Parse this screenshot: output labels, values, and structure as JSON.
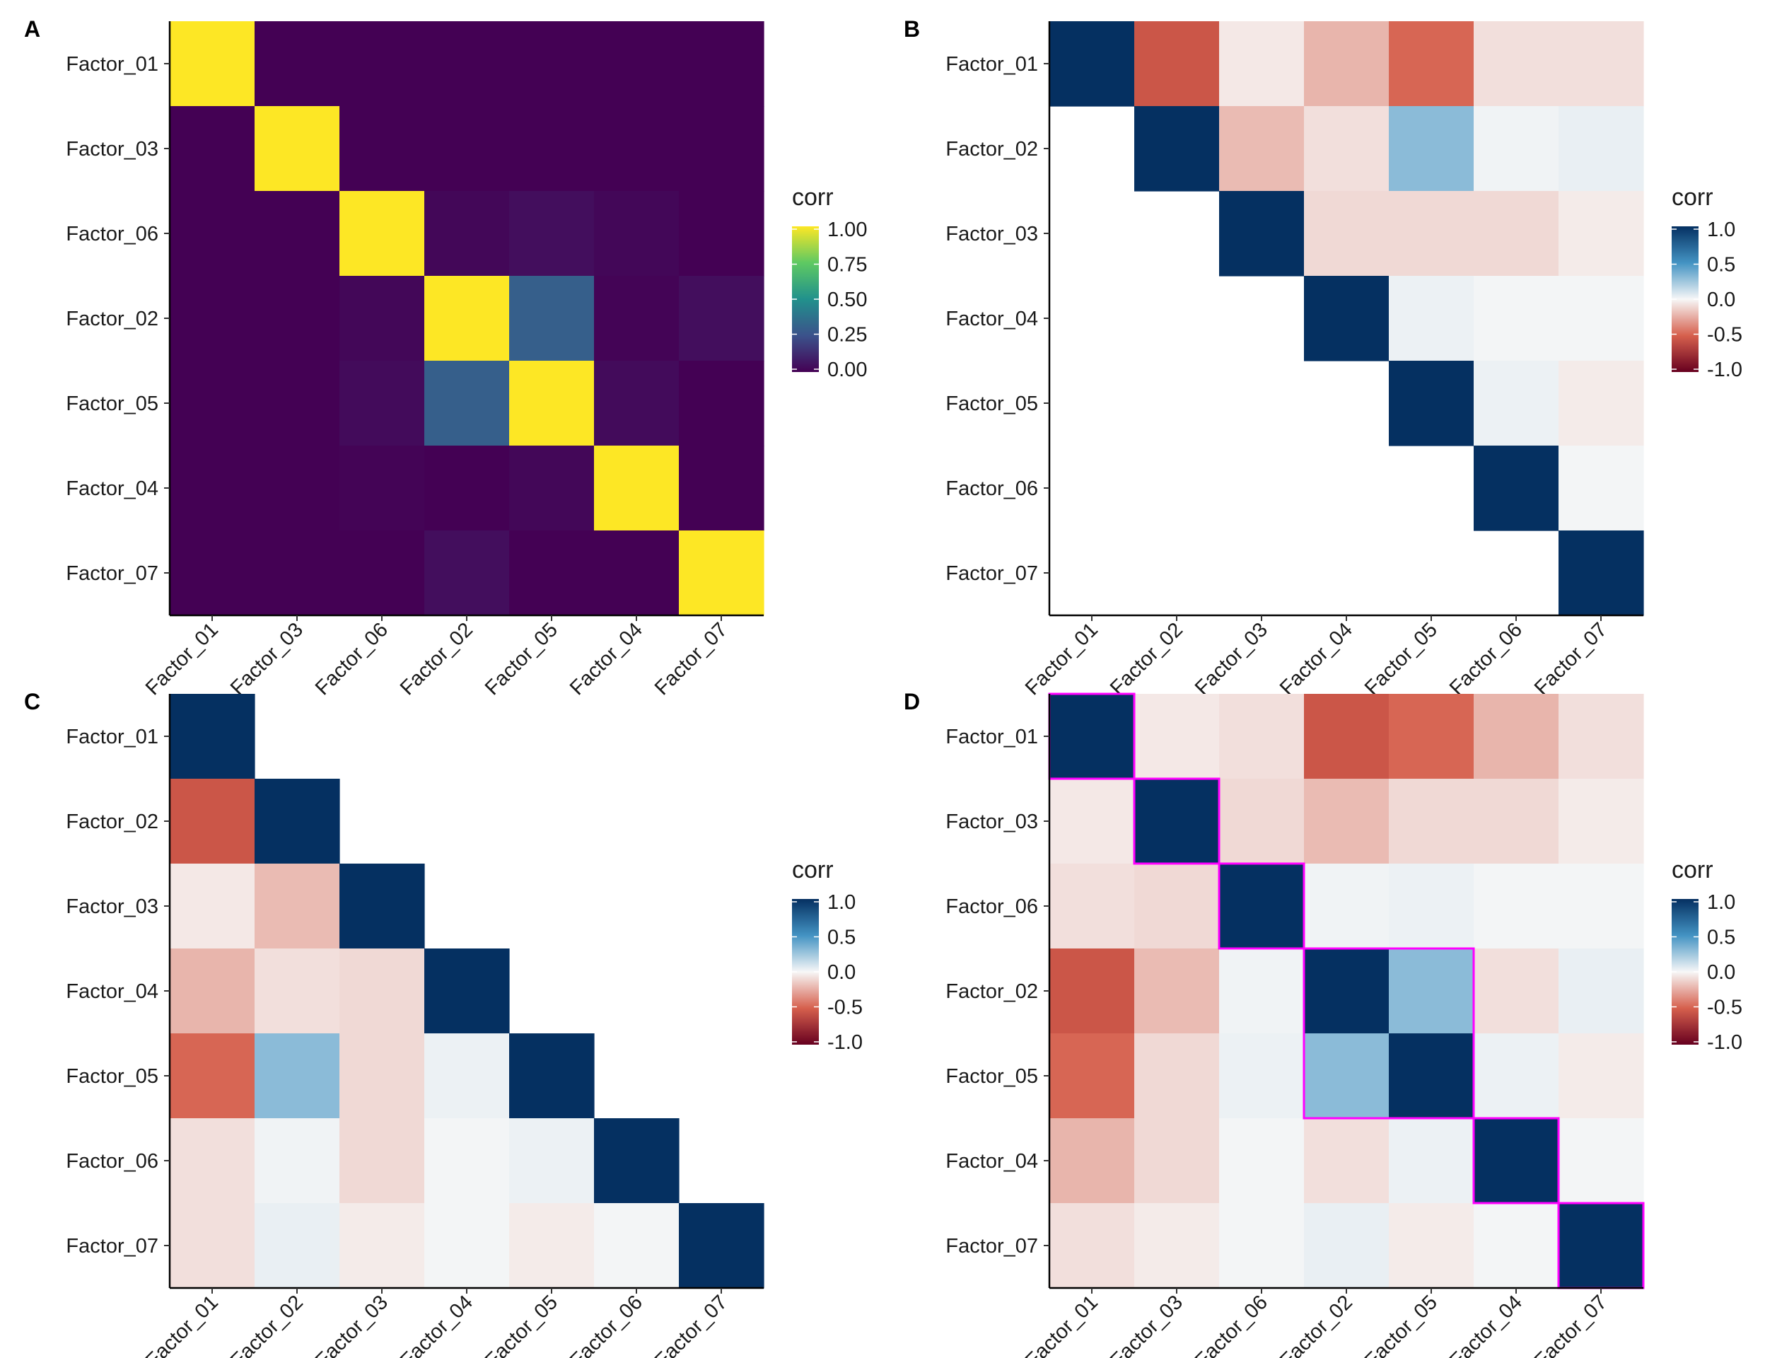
{
  "colors": {
    "viridis": [
      "#440154",
      "#3b528b",
      "#21918c",
      "#5ec962",
      "#fde725"
    ],
    "rdbu": [
      "#67001f",
      "#d6604d",
      "#f7f7f7",
      "#4393c3",
      "#053061"
    ],
    "highlight": "#ff00ff",
    "axis": "#000000"
  },
  "chart_data": [
    {
      "panel": "A",
      "type": "heatmap",
      "palette": "viridis",
      "order": [
        "Factor_01",
        "Factor_03",
        "Factor_06",
        "Factor_02",
        "Factor_05",
        "Factor_04",
        "Factor_07"
      ],
      "matrix": [
        [
          1.0,
          0.0,
          0.0,
          0.0,
          0.0,
          0.0,
          0.0
        ],
        [
          0.0,
          1.0,
          0.0,
          0.0,
          0.0,
          0.0,
          0.0
        ],
        [
          0.0,
          0.0,
          1.0,
          0.02,
          0.04,
          0.02,
          0.0
        ],
        [
          0.0,
          0.0,
          0.02,
          1.0,
          0.3,
          0.01,
          0.04
        ],
        [
          0.0,
          0.0,
          0.03,
          0.3,
          1.0,
          0.03,
          0.0
        ],
        [
          0.0,
          0.0,
          0.01,
          0.0,
          0.02,
          1.0,
          0.0
        ],
        [
          0.0,
          0.0,
          0.0,
          0.04,
          0.0,
          0.0,
          1.0
        ]
      ],
      "triangle": "full",
      "legend": {
        "title": "corr",
        "ticks": [
          "1.00",
          "0.75",
          "0.50",
          "0.25",
          "0.00"
        ],
        "range": [
          0,
          1
        ]
      },
      "highlight_groups": []
    },
    {
      "panel": "B",
      "type": "heatmap",
      "palette": "rdbu",
      "order": [
        "Factor_01",
        "Factor_02",
        "Factor_03",
        "Factor_04",
        "Factor_05",
        "Factor_06",
        "Factor_07"
      ],
      "matrix": [
        [
          1.0,
          -0.55,
          -0.05,
          -0.22,
          -0.48,
          -0.08,
          -0.08
        ],
        [
          -0.55,
          1.0,
          -0.2,
          -0.08,
          0.3,
          0.02,
          0.04
        ],
        [
          -0.05,
          -0.2,
          1.0,
          -0.1,
          -0.1,
          -0.1,
          -0.04
        ],
        [
          -0.22,
          -0.08,
          -0.1,
          1.0,
          0.03,
          0.01,
          0.01
        ],
        [
          -0.48,
          0.3,
          -0.1,
          0.03,
          1.0,
          0.03,
          -0.04
        ],
        [
          -0.08,
          0.02,
          -0.1,
          0.01,
          0.03,
          1.0,
          0.01
        ],
        [
          -0.08,
          0.04,
          -0.04,
          0.01,
          -0.04,
          0.01,
          1.0
        ]
      ],
      "triangle": "upper",
      "legend": {
        "title": "corr",
        "ticks": [
          "1.0",
          "0.5",
          "0.0",
          "-0.5",
          "-1.0"
        ],
        "range": [
          -1,
          1
        ]
      },
      "highlight_groups": []
    },
    {
      "panel": "C",
      "type": "heatmap",
      "palette": "rdbu",
      "order": [
        "Factor_01",
        "Factor_02",
        "Factor_03",
        "Factor_04",
        "Factor_05",
        "Factor_06",
        "Factor_07"
      ],
      "matrix": [
        [
          1.0,
          -0.55,
          -0.05,
          -0.22,
          -0.48,
          -0.08,
          -0.08
        ],
        [
          -0.55,
          1.0,
          -0.2,
          -0.08,
          0.3,
          0.02,
          0.04
        ],
        [
          -0.05,
          -0.2,
          1.0,
          -0.1,
          -0.1,
          -0.1,
          -0.04
        ],
        [
          -0.22,
          -0.08,
          -0.1,
          1.0,
          0.03,
          0.01,
          0.01
        ],
        [
          -0.48,
          0.3,
          -0.1,
          0.03,
          1.0,
          0.03,
          -0.04
        ],
        [
          -0.08,
          0.02,
          -0.1,
          0.01,
          0.03,
          1.0,
          0.01
        ],
        [
          -0.08,
          0.04,
          -0.04,
          0.01,
          -0.04,
          0.01,
          1.0
        ]
      ],
      "triangle": "lower",
      "legend": {
        "title": "corr",
        "ticks": [
          "1.0",
          "0.5",
          "0.0",
          "-0.5",
          "-1.0"
        ],
        "range": [
          -1,
          1
        ]
      },
      "highlight_groups": []
    },
    {
      "panel": "D",
      "type": "heatmap",
      "palette": "rdbu",
      "order": [
        "Factor_01",
        "Factor_03",
        "Factor_06",
        "Factor_02",
        "Factor_05",
        "Factor_04",
        "Factor_07"
      ],
      "matrix": [
        [
          1.0,
          -0.05,
          -0.08,
          -0.55,
          -0.48,
          -0.22,
          -0.08
        ],
        [
          -0.05,
          1.0,
          -0.1,
          -0.2,
          -0.1,
          -0.1,
          -0.04
        ],
        [
          -0.08,
          -0.1,
          1.0,
          0.02,
          0.03,
          0.01,
          0.01
        ],
        [
          -0.55,
          -0.2,
          0.02,
          1.0,
          0.3,
          -0.08,
          0.04
        ],
        [
          -0.48,
          -0.1,
          0.03,
          0.3,
          1.0,
          0.03,
          -0.04
        ],
        [
          -0.22,
          -0.1,
          0.01,
          -0.08,
          0.03,
          1.0,
          0.01
        ],
        [
          -0.08,
          -0.04,
          0.01,
          0.04,
          -0.04,
          0.01,
          1.0
        ]
      ],
      "triangle": "full",
      "legend": {
        "title": "corr",
        "ticks": [
          "1.0",
          "0.5",
          "0.0",
          "-0.5",
          "-1.0"
        ],
        "range": [
          -1,
          1
        ]
      },
      "highlight_groups": [
        [
          0,
          0
        ],
        [
          1,
          1
        ],
        [
          2,
          2
        ],
        [
          3,
          4
        ],
        [
          5,
          5
        ],
        [
          6,
          6
        ]
      ]
    }
  ]
}
